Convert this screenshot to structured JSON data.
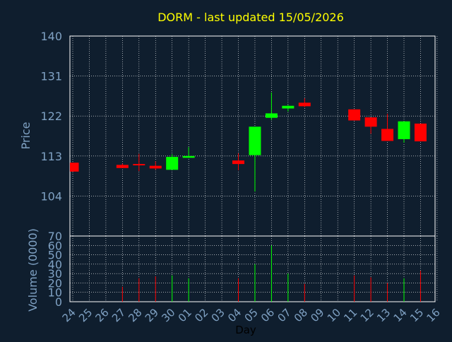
{
  "chart_data": {
    "type": "candlestick",
    "title": "DORM - last updated 15/05/2026",
    "xlabel": "Day",
    "price_ylabel": "Price",
    "volume_ylabel": "Volume (0000)",
    "price_ylim": [
      95,
      140
    ],
    "price_ticks": [
      "140",
      "131",
      "122",
      "113",
      "104"
    ],
    "price_tick_values": [
      140,
      131,
      122,
      113,
      104
    ],
    "volume_ylim": [
      0,
      70
    ],
    "volume_ticks": [
      "70",
      "60",
      "50",
      "40",
      "30",
      "20",
      "10",
      "0"
    ],
    "volume_tick_values": [
      70,
      60,
      50,
      40,
      30,
      20,
      10,
      0
    ],
    "grid": true,
    "colors": {
      "background": "#0f1e2e",
      "axis_text": "#7fa1c3",
      "title": "#ffff00",
      "grid": "#ffffff",
      "up": "#00ff00",
      "down": "#ff0000",
      "wick": "#ff0000"
    },
    "days": [
      "24",
      "25",
      "26",
      "27",
      "28",
      "29",
      "30",
      "01",
      "02",
      "03",
      "04",
      "05",
      "06",
      "07",
      "08",
      "09",
      "10",
      "11",
      "12",
      "13",
      "14",
      "15",
      "16"
    ],
    "candles": [
      {
        "day": "24",
        "open": 111.5,
        "high": 111.5,
        "low": 109.5,
        "close": 109.5
      },
      {
        "day": "27",
        "open": 111.0,
        "high": 111.3,
        "low": 110.3,
        "close": 110.3
      },
      {
        "day": "28",
        "open": 111.2,
        "high": 113.5,
        "low": 109.6,
        "close": 110.9
      },
      {
        "day": "29",
        "open": 110.8,
        "high": 111.8,
        "low": 109.9,
        "close": 110.2
      },
      {
        "day": "30",
        "open": 109.9,
        "high": 113.4,
        "low": 109.9,
        "close": 112.8
      },
      {
        "day": "01",
        "open": 112.6,
        "high": 115.0,
        "low": 112.6,
        "close": 113.0
      },
      {
        "day": "04",
        "open": 112.0,
        "high": 113.6,
        "low": 109.8,
        "close": 111.2
      },
      {
        "day": "05",
        "open": 113.2,
        "high": 119.6,
        "low": 105.0,
        "close": 119.6
      },
      {
        "day": "06",
        "open": 121.6,
        "high": 127.3,
        "low": 121.1,
        "close": 122.6
      },
      {
        "day": "07",
        "open": 123.7,
        "high": 124.5,
        "low": 123.0,
        "close": 124.3
      },
      {
        "day": "08",
        "open": 125.0,
        "high": 126.0,
        "low": 124.0,
        "close": 124.2
      },
      {
        "day": "11",
        "open": 123.5,
        "high": 123.5,
        "low": 121.0,
        "close": 121.0
      },
      {
        "day": "12",
        "open": 121.7,
        "high": 121.7,
        "low": 118.0,
        "close": 119.6
      },
      {
        "day": "13",
        "open": 119.1,
        "high": 122.5,
        "low": 116.4,
        "close": 116.4
      },
      {
        "day": "14",
        "open": 116.8,
        "high": 120.8,
        "low": 116.0,
        "close": 120.8
      },
      {
        "day": "15",
        "open": 120.3,
        "high": 120.3,
        "low": 116.3,
        "close": 116.3
      }
    ],
    "volume": [
      {
        "day": "24",
        "value": 0
      },
      {
        "day": "27",
        "value": 16
      },
      {
        "day": "28",
        "value": 25
      },
      {
        "day": "29",
        "value": 27
      },
      {
        "day": "30",
        "value": 28
      },
      {
        "day": "01",
        "value": 25
      },
      {
        "day": "04",
        "value": 25
      },
      {
        "day": "05",
        "value": 40
      },
      {
        "day": "06",
        "value": 60
      },
      {
        "day": "07",
        "value": 30
      },
      {
        "day": "08",
        "value": 19
      },
      {
        "day": "11",
        "value": 28
      },
      {
        "day": "12",
        "value": 26
      },
      {
        "day": "13",
        "value": 20
      },
      {
        "day": "14",
        "value": 25
      },
      {
        "day": "15",
        "value": 33
      }
    ]
  }
}
